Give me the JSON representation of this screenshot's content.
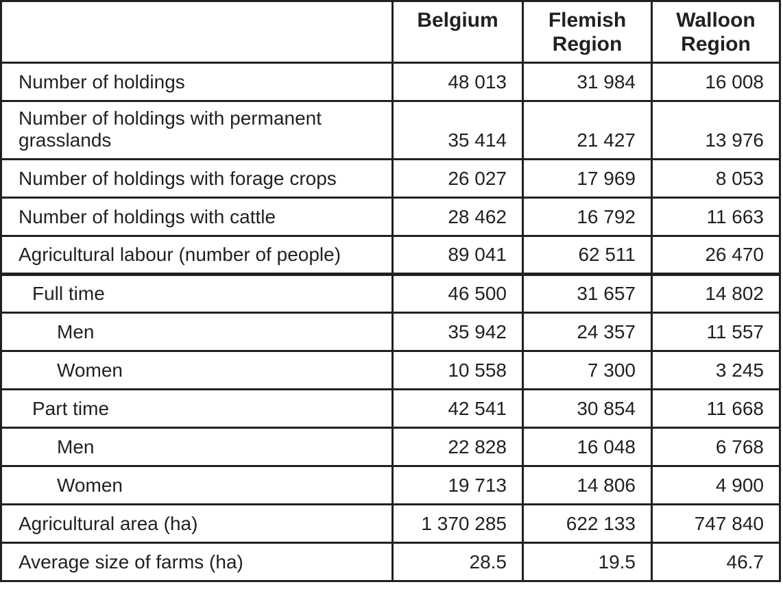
{
  "table": {
    "columns": [
      "",
      "Belgium",
      "Flemish Region",
      "Walloon Region"
    ],
    "rows": [
      {
        "label": "Number of holdings",
        "indent": 0,
        "values": [
          "48 013",
          "31 984",
          "16 008"
        ]
      },
      {
        "label": "Number of holdings with permanent grasslands",
        "indent": 0,
        "values": [
          "35 414",
          "21 427",
          "13 976"
        ]
      },
      {
        "label": "Number of holdings with forage crops",
        "indent": 0,
        "values": [
          "26 027",
          "17 969",
          "8 053"
        ]
      },
      {
        "label": "Number of holdings with cattle",
        "indent": 0,
        "values": [
          "28 462",
          "16 792",
          "11 663"
        ]
      },
      {
        "label": "Agricultural labour (number of people)",
        "indent": 0,
        "values": [
          "89 041",
          "62 511",
          "26 470"
        ],
        "thick_bottom": true
      },
      {
        "label": "Full time",
        "indent": 1,
        "values": [
          "46 500",
          "31 657",
          "14 802"
        ]
      },
      {
        "label": "Men",
        "indent": 2,
        "values": [
          "35 942",
          "24 357",
          "11 557"
        ]
      },
      {
        "label": "Women",
        "indent": 2,
        "values": [
          "10 558",
          "7 300",
          "3 245"
        ]
      },
      {
        "label": "Part time",
        "indent": 1,
        "values": [
          "42 541",
          "30 854",
          "11 668"
        ]
      },
      {
        "label": "Men",
        "indent": 2,
        "values": [
          "22 828",
          "16 048",
          "6 768"
        ]
      },
      {
        "label": "Women",
        "indent": 2,
        "values": [
          "19 713",
          "14 806",
          "4 900"
        ]
      },
      {
        "label": "Agricultural area (ha)",
        "indent": 0,
        "values": [
          "1 370 285",
          "622 133",
          "747 840"
        ]
      },
      {
        "label": "Average size of farms (ha)",
        "indent": 0,
        "values": [
          "28.5",
          "19.5",
          "46.7"
        ]
      }
    ],
    "colors": {
      "text": "#231f20",
      "border": "#231f20",
      "background": "#ffffff"
    }
  }
}
